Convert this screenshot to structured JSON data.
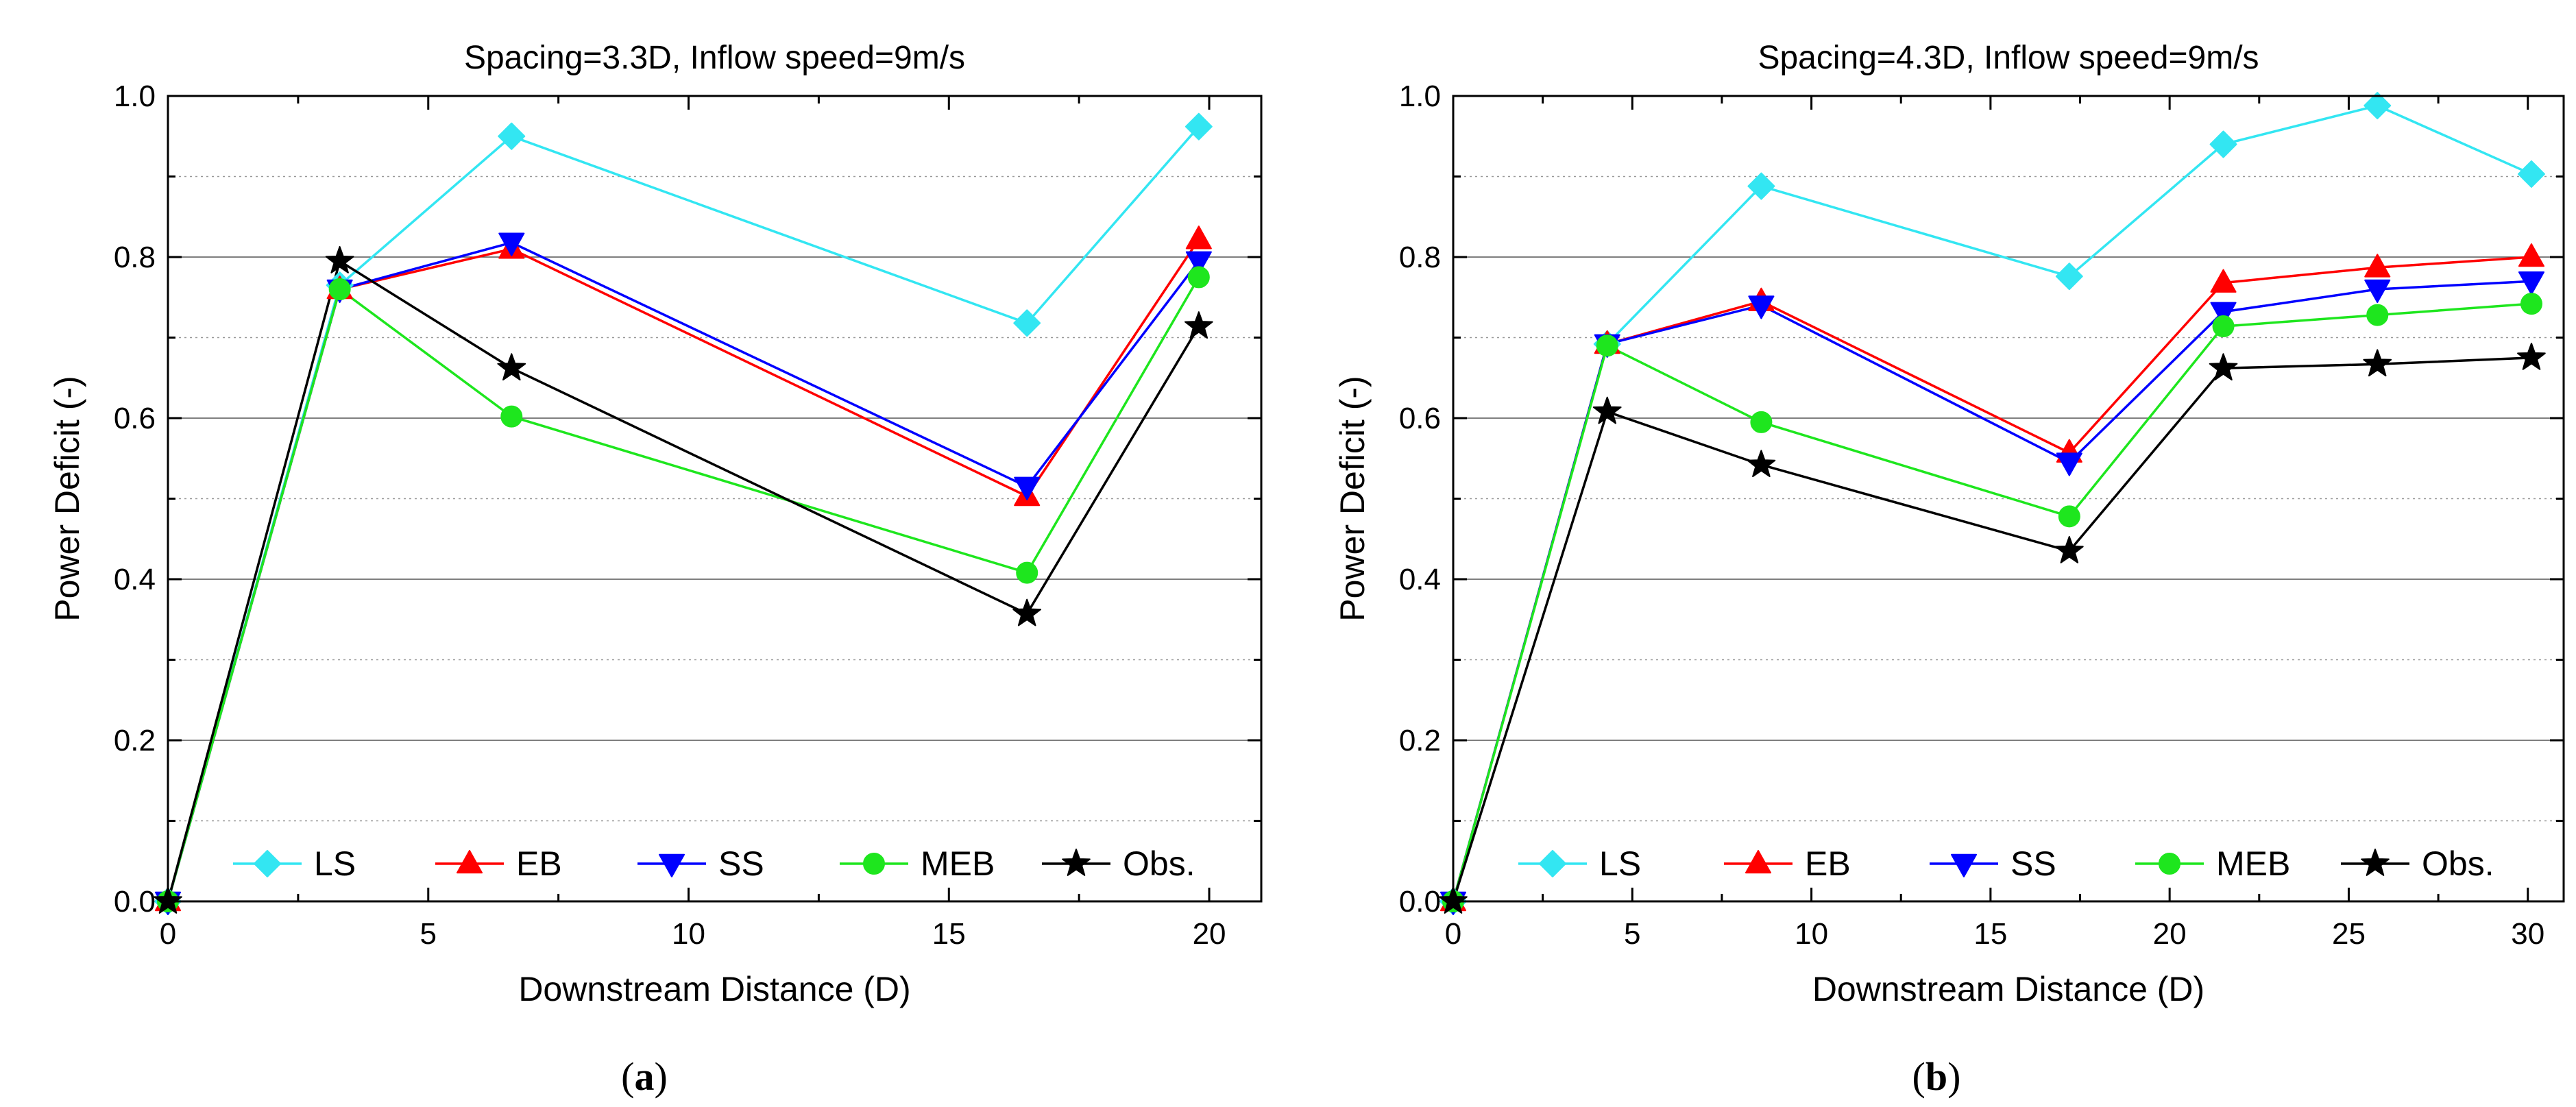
{
  "chart_data": [
    {
      "type": "line",
      "panel_label": "(a)",
      "title": "Spacing=3.3D, Inflow speed=9m/s",
      "xlabel": "Downstream Distance (D)",
      "ylabel": "Power Deficit (-)",
      "xlim": [
        0,
        21
      ],
      "ylim": [
        0,
        1.0
      ],
      "xticks": [
        0,
        5,
        10,
        15,
        20
      ],
      "yticks": [
        0.0,
        0.2,
        0.4,
        0.6,
        0.8,
        1.0
      ],
      "ytick_labels": [
        "0.0",
        "0.2",
        "0.4",
        "0.6",
        "0.8",
        "1.0"
      ],
      "grid": "horizontal",
      "legend_position": "bottom",
      "x": [
        0,
        3.3,
        6.6,
        16.5,
        19.8
      ],
      "series": [
        {
          "name": "LS",
          "color": "#33e6f2",
          "marker": "diamond",
          "values": [
            0,
            0.765,
            0.95,
            0.718,
            0.962
          ]
        },
        {
          "name": "EB",
          "color": "#ff0000",
          "marker": "triangle-up",
          "values": [
            0,
            0.76,
            0.81,
            0.503,
            0.822
          ]
        },
        {
          "name": "SS",
          "color": "#0000ff",
          "marker": "triangle-down",
          "values": [
            0,
            0.76,
            0.818,
            0.515,
            0.795
          ]
        },
        {
          "name": "MEB",
          "color": "#1ee61e",
          "marker": "circle",
          "values": [
            0,
            0.76,
            0.602,
            0.408,
            0.775
          ]
        },
        {
          "name": "Obs.",
          "color": "#000000",
          "marker": "star",
          "values": [
            0,
            0.795,
            0.662,
            0.357,
            0.714
          ]
        }
      ]
    },
    {
      "type": "line",
      "panel_label": "(b)",
      "title": "Spacing=4.3D, Inflow speed=9m/s",
      "xlabel": "Downstream Distance (D)",
      "ylabel": "Power Deficit (-)",
      "xlim": [
        0,
        31
      ],
      "ylim": [
        0,
        1.0
      ],
      "xticks": [
        0,
        5,
        10,
        15,
        20,
        25,
        30
      ],
      "yticks": [
        0.0,
        0.2,
        0.4,
        0.6,
        0.8,
        1.0
      ],
      "ytick_labels": [
        "0.0",
        "0.2",
        "0.4",
        "0.6",
        "0.8",
        "1.0"
      ],
      "grid": "horizontal",
      "legend_position": "bottom",
      "x": [
        0,
        4.3,
        8.6,
        17.2,
        21.5,
        25.8,
        30.1
      ],
      "series": [
        {
          "name": "LS",
          "color": "#33e6f2",
          "marker": "diamond",
          "values": [
            0,
            0.692,
            0.888,
            0.776,
            0.94,
            0.988,
            0.903
          ]
        },
        {
          "name": "EB",
          "color": "#ff0000",
          "marker": "triangle-up",
          "values": [
            0,
            0.692,
            0.745,
            0.557,
            0.768,
            0.787,
            0.8
          ]
        },
        {
          "name": "SS",
          "color": "#0000ff",
          "marker": "triangle-down",
          "values": [
            0,
            0.692,
            0.74,
            0.545,
            0.732,
            0.76,
            0.77
          ]
        },
        {
          "name": "MEB",
          "color": "#1ee61e",
          "marker": "circle",
          "values": [
            0,
            0.69,
            0.595,
            0.478,
            0.714,
            0.728,
            0.742
          ]
        },
        {
          "name": "Obs.",
          "color": "#000000",
          "marker": "star",
          "values": [
            0,
            0.608,
            0.542,
            0.435,
            0.662,
            0.667,
            0.675
          ]
        }
      ]
    }
  ]
}
